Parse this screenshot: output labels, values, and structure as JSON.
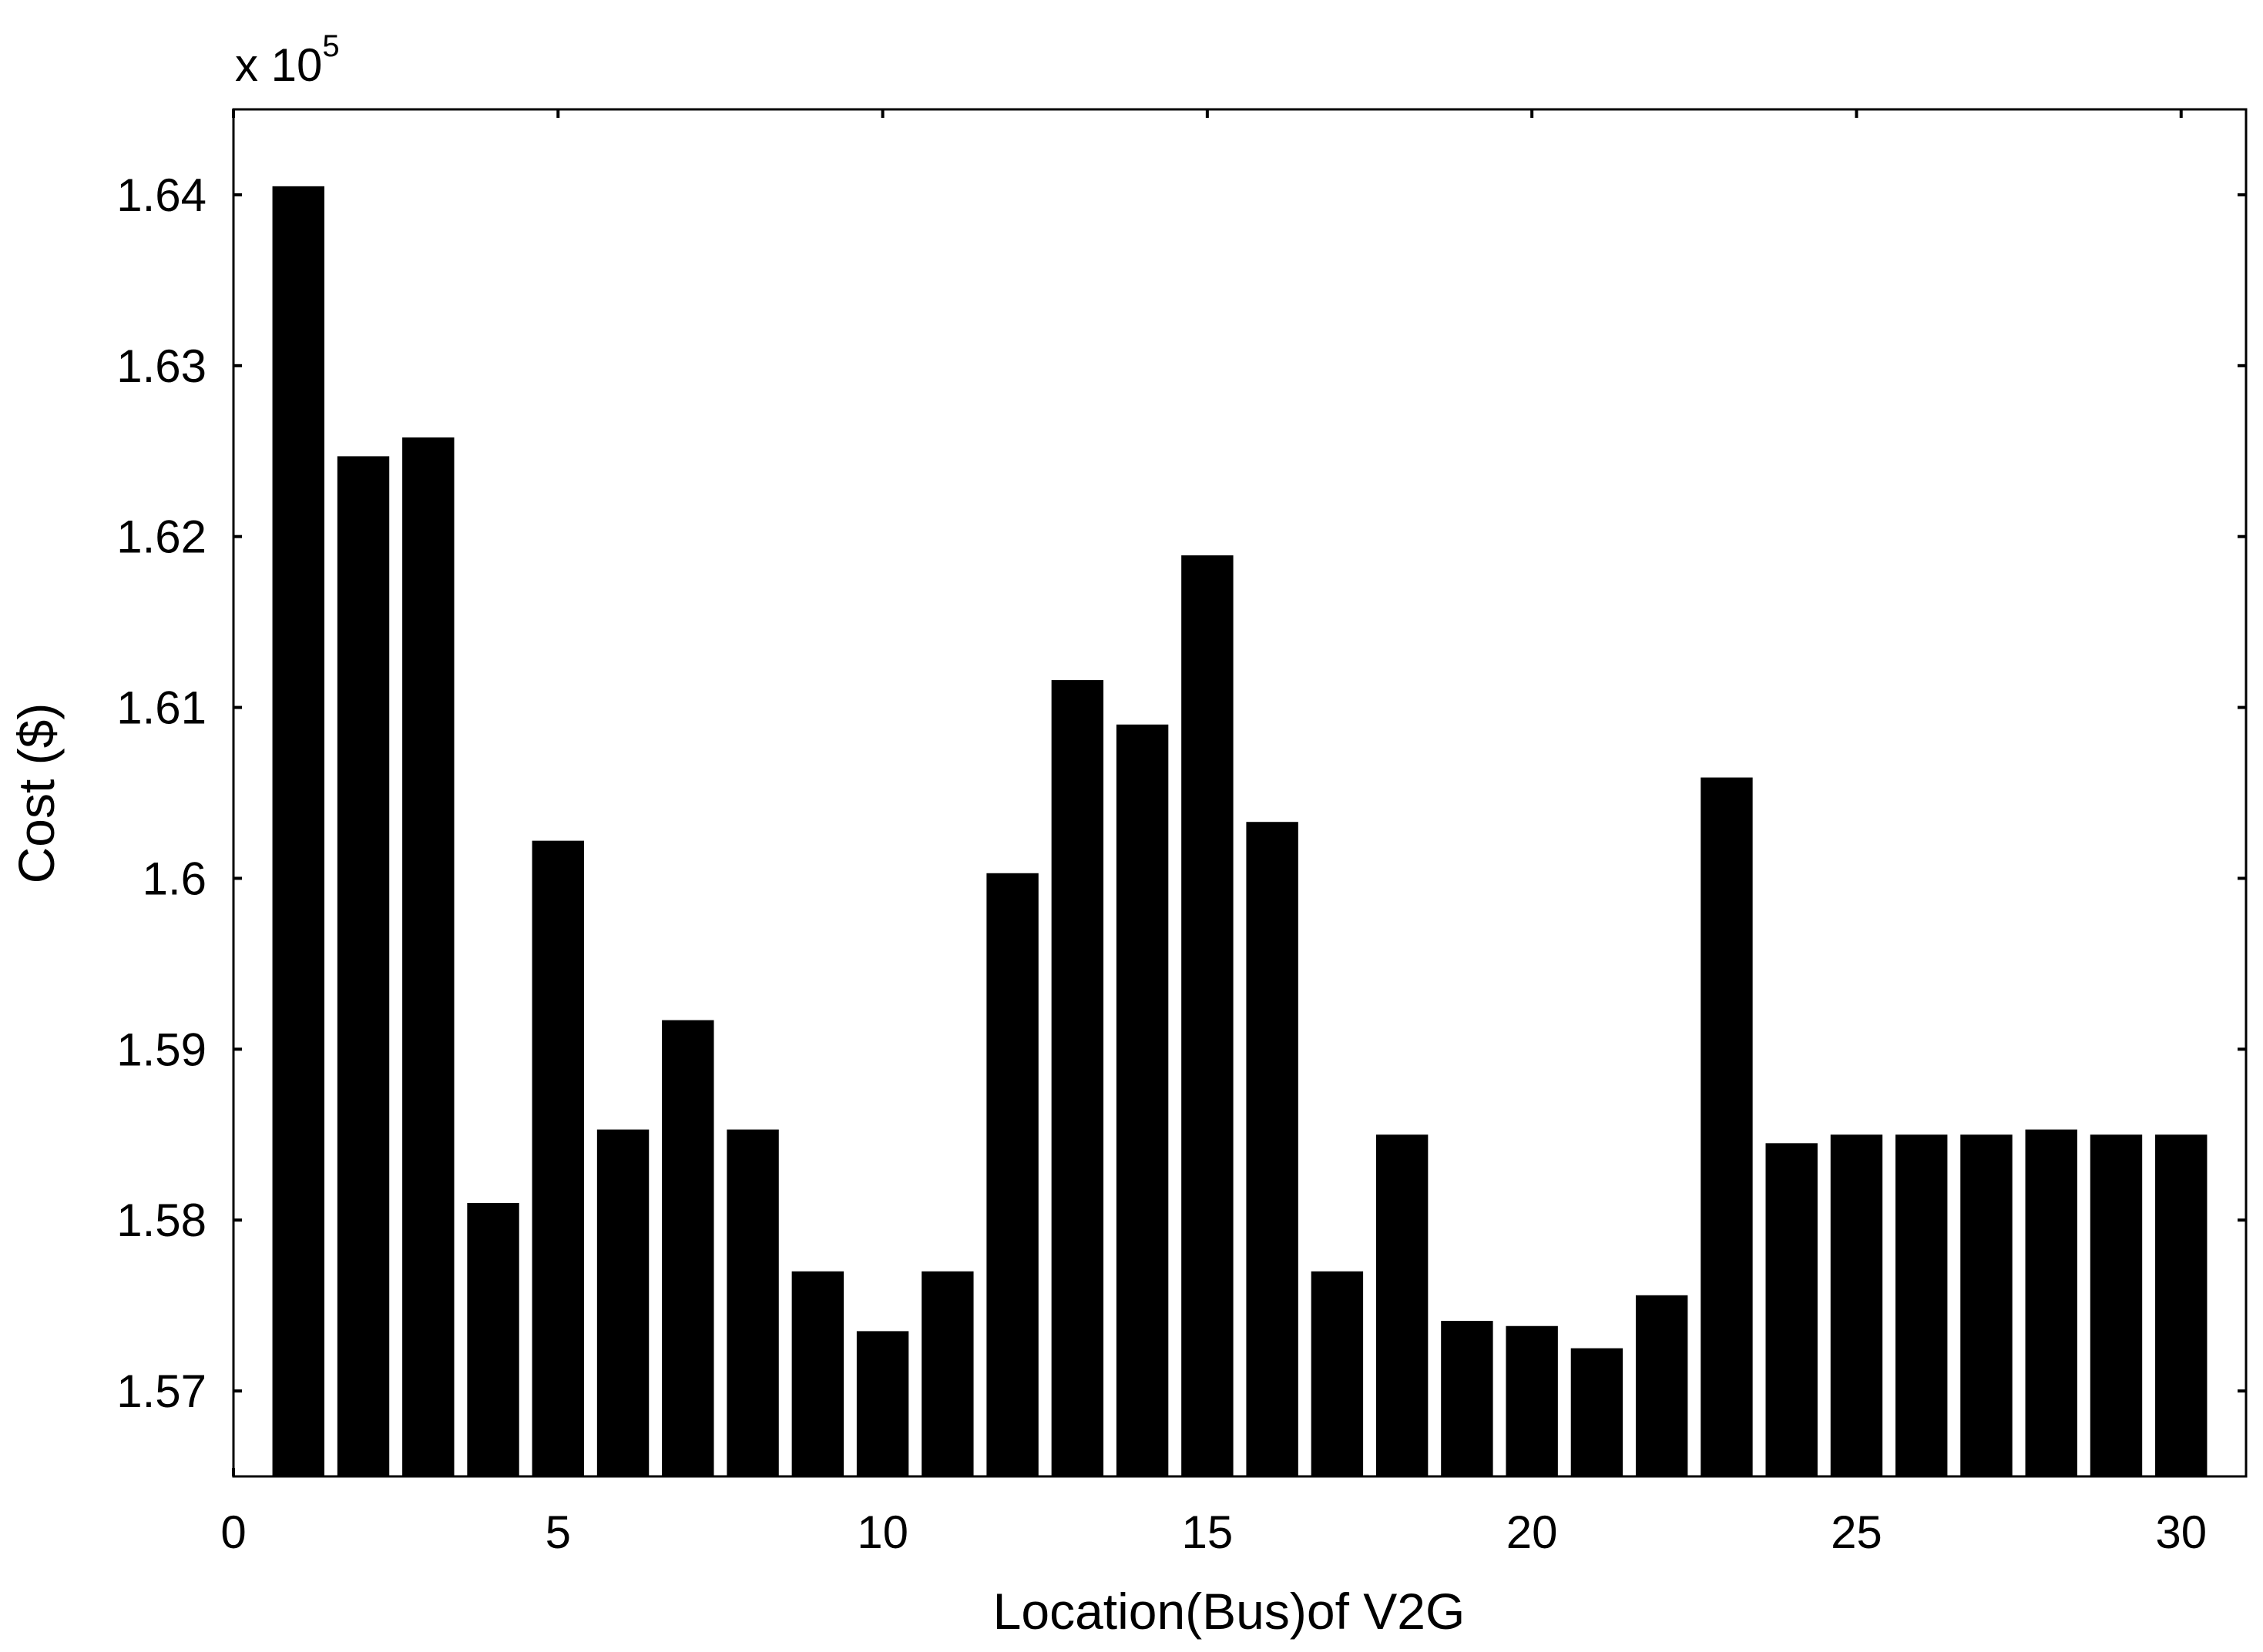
{
  "chart_data": {
    "type": "bar",
    "title": "",
    "xlabel": "Location(Bus)of V2G",
    "ylabel": "Cost ($)",
    "y_multiplier_base": "x 10",
    "y_multiplier_exponent": "5",
    "xlim": [
      0,
      31
    ],
    "ylim": [
      1.565,
      1.645
    ],
    "x_ticks": [
      0,
      5,
      10,
      15,
      20,
      25,
      30
    ],
    "x_tick_labels": [
      "0",
      "5",
      "10",
      "15",
      "20",
      "25",
      "30"
    ],
    "y_ticks": [
      1.57,
      1.58,
      1.59,
      1.6,
      1.61,
      1.62,
      1.63,
      1.64
    ],
    "y_tick_labels": [
      "1.57",
      "1.58",
      "1.59",
      "1.6",
      "1.61",
      "1.62",
      "1.63",
      "1.64"
    ],
    "x": [
      1,
      2,
      3,
      4,
      5,
      6,
      7,
      8,
      9,
      10,
      11,
      12,
      13,
      14,
      15,
      16,
      17,
      18,
      19,
      20,
      21,
      22,
      23,
      24,
      25,
      26,
      27,
      28,
      29,
      30
    ],
    "values": [
      1.6405,
      1.6247,
      1.6258,
      1.581,
      1.6022,
      1.5853,
      1.5917,
      1.5853,
      1.577,
      1.5735,
      1.577,
      1.6003,
      1.6116,
      1.609,
      1.6189,
      1.6033,
      1.577,
      1.585,
      1.5741,
      1.5738,
      1.5725,
      1.5756,
      1.6059,
      1.5845,
      1.585,
      1.585,
      1.585,
      1.5853,
      1.585,
      1.585
    ],
    "bar_color": "#000000",
    "grid": false,
    "legend": "none"
  }
}
